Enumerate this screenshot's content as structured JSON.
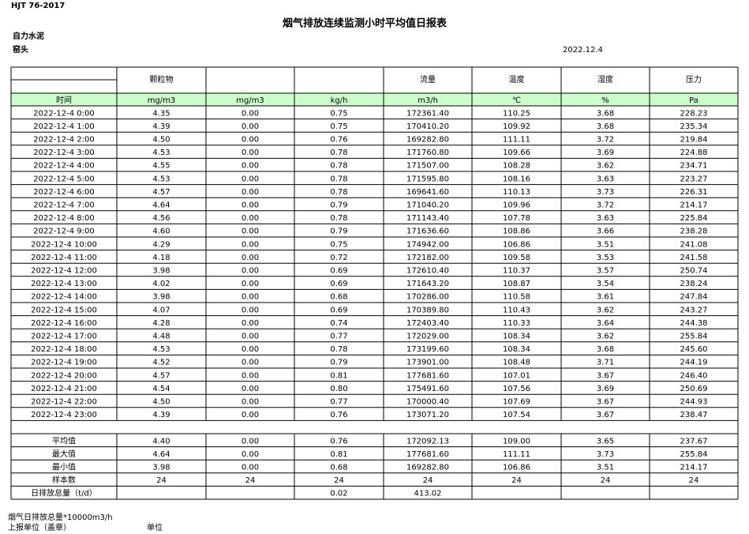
{
  "header": {
    "standard": "HJT  76-2017",
    "title": "烟气排放连续监测小时平均值日报表",
    "company": "自力水泥",
    "location": "窑头",
    "date": "2022.12.4"
  },
  "table": {
    "headers": {
      "particulate": "颗粒物",
      "flow": "流量",
      "temperature": "温度",
      "humidity": "湿度",
      "pressure": "压力"
    },
    "units": [
      "时间",
      "mg/m3",
      "mg/m3",
      "kg/h",
      "m3/h",
      "℃",
      "%",
      "Pa"
    ],
    "rows": [
      [
        "2022-12-4 0:00",
        "4.35",
        "0.00",
        "0.75",
        "172361.40",
        "110.25",
        "3.68",
        "228.23"
      ],
      [
        "2022-12-4 1:00",
        "4.39",
        "0.00",
        "0.75",
        "170410.20",
        "109.92",
        "3.68",
        "235.34"
      ],
      [
        "2022-12-4 2:00",
        "4.50",
        "0.00",
        "0.76",
        "169282.80",
        "111.11",
        "3.72",
        "219.84"
      ],
      [
        "2022-12-4 3:00",
        "4.53",
        "0.00",
        "0.78",
        "171760.80",
        "109.66",
        "3.69",
        "224.88"
      ],
      [
        "2022-12-4 4:00",
        "4.55",
        "0.00",
        "0.78",
        "171507.00",
        "108.28",
        "3.62",
        "234.71"
      ],
      [
        "2022-12-4 5:00",
        "4.53",
        "0.00",
        "0.78",
        "171595.80",
        "108.16",
        "3.63",
        "223.27"
      ],
      [
        "2022-12-4 6:00",
        "4.57",
        "0.00",
        "0.78",
        "169641.60",
        "110.13",
        "3.73",
        "226.31"
      ],
      [
        "2022-12-4 7:00",
        "4.64",
        "0.00",
        "0.79",
        "171040.20",
        "109.96",
        "3.72",
        "214.17"
      ],
      [
        "2022-12-4 8:00",
        "4.56",
        "0.00",
        "0.78",
        "171143.40",
        "107.78",
        "3.63",
        "225.84"
      ],
      [
        "2022-12-4 9:00",
        "4.60",
        "0.00",
        "0.79",
        "171636.60",
        "108.86",
        "3.66",
        "238.28"
      ],
      [
        "2022-12-4 10:00",
        "4.29",
        "0.00",
        "0.75",
        "174942.00",
        "106.86",
        "3.51",
        "241.08"
      ],
      [
        "2022-12-4 11:00",
        "4.18",
        "0.00",
        "0.72",
        "172182.00",
        "109.58",
        "3.53",
        "241.58"
      ],
      [
        "2022-12-4 12:00",
        "3.98",
        "0.00",
        "0.69",
        "172610.40",
        "110.37",
        "3.57",
        "250.74"
      ],
      [
        "2022-12-4 13:00",
        "4.02",
        "0.00",
        "0.69",
        "171643.20",
        "108.87",
        "3.54",
        "238.24"
      ],
      [
        "2022-12-4 14:00",
        "3.98",
        "0.00",
        "0.68",
        "170286.00",
        "110.58",
        "3.61",
        "247.84"
      ],
      [
        "2022-12-4 15:00",
        "4.07",
        "0.00",
        "0.69",
        "170389.80",
        "110.43",
        "3.62",
        "243.27"
      ],
      [
        "2022-12-4 16:00",
        "4.28",
        "0.00",
        "0.74",
        "172403.40",
        "110.33",
        "3.64",
        "244.38"
      ],
      [
        "2022-12-4 17:00",
        "4.48",
        "0.00",
        "0.77",
        "172029.00",
        "108.34",
        "3.62",
        "255.84"
      ],
      [
        "2022-12-4 18:00",
        "4.53",
        "0.00",
        "0.78",
        "173199.60",
        "108.34",
        "3.68",
        "245.60"
      ],
      [
        "2022-12-4 19:00",
        "4.52",
        "0.00",
        "0.79",
        "173901.00",
        "108.48",
        "3.71",
        "244.19"
      ],
      [
        "2022-12-4 20:00",
        "4.57",
        "0.00",
        "0.81",
        "177681.60",
        "107.01",
        "3.67",
        "246.40"
      ],
      [
        "2022-12-4 21:00",
        "4.54",
        "0.00",
        "0.80",
        "175491.60",
        "107.56",
        "3.69",
        "250.69"
      ],
      [
        "2022-12-4 22:00",
        "4.50",
        "0.00",
        "0.77",
        "170000.40",
        "107.69",
        "3.67",
        "244.93"
      ],
      [
        "2022-12-4 23:00",
        "4.39",
        "0.00",
        "0.76",
        "173071.20",
        "107.54",
        "3.67",
        "238.47"
      ]
    ],
    "stats": [
      [
        "平均值",
        "4.40",
        "0.00",
        "0.76",
        "172092.13",
        "109.00",
        "3.65",
        "237.67"
      ],
      [
        "最大值",
        "4.64",
        "0.00",
        "0.81",
        "177681.60",
        "111.11",
        "3.73",
        "255.84"
      ],
      [
        "最小值",
        "3.98",
        "0.00",
        "0.68",
        "169282.80",
        "106.86",
        "3.51",
        "214.17"
      ],
      [
        "样本数",
        "24",
        "24",
        "24",
        "24",
        "24",
        "24",
        "24"
      ]
    ],
    "daily_total": {
      "label": "日排放总量（t/d）",
      "kg_h": "0.02",
      "flow": "413.02"
    }
  },
  "footer": {
    "flow_note": "烟气日排放总量*10000m3/h",
    "reporter": "上报单位（盖章）",
    "unit": "单位"
  }
}
